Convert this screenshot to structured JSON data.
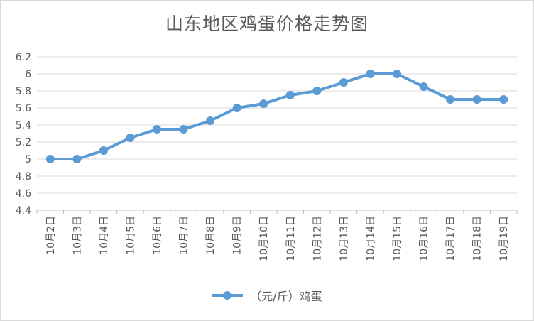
{
  "chart_data": {
    "type": "line",
    "title": "山东地区鸡蛋价格走势图",
    "categories": [
      "10月2日",
      "10月3日",
      "10月4日",
      "10月5日",
      "10月6日",
      "10月7日",
      "10月8日",
      "10月9日",
      "10月10日",
      "10月11日",
      "10月12日",
      "10月13日",
      "10月14日",
      "10月15日",
      "10月16日",
      "10月17日",
      "10月18日",
      "10月19日"
    ],
    "series": [
      {
        "name": "（元/斤）鸡蛋",
        "values": [
          5.0,
          5.0,
          5.1,
          5.25,
          5.35,
          5.35,
          5.45,
          5.6,
          5.65,
          5.75,
          5.8,
          5.9,
          6.0,
          6.0,
          5.85,
          5.7,
          5.7,
          5.7
        ],
        "color": "#5b9bd5"
      }
    ],
    "ylim": [
      4.4,
      6.2
    ],
    "yticks": [
      4.4,
      4.6,
      4.8,
      5,
      5.2,
      5.4,
      5.6,
      5.8,
      6,
      6.2
    ],
    "xlabel": "",
    "ylabel": "",
    "grid": true,
    "legend_position": "bottom"
  }
}
